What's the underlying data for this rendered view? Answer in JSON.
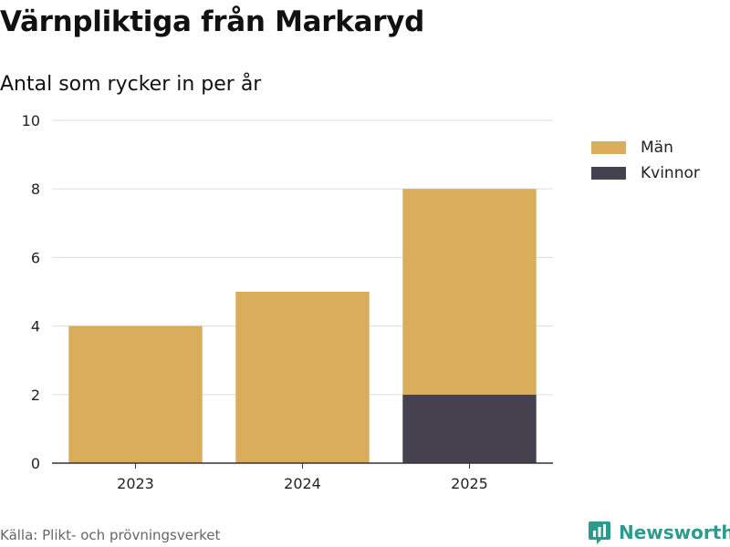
{
  "header": {
    "title": "Värnpliktiga från Markaryd",
    "subtitle": "Antal som rycker in per år"
  },
  "chart_data": {
    "type": "bar",
    "stacked": true,
    "categories": [
      "2023",
      "2024",
      "2025"
    ],
    "series": [
      {
        "name": "Kvinnor",
        "values": [
          0,
          0,
          2
        ],
        "color": "#45414f"
      },
      {
        "name": "Män",
        "values": [
          4,
          5,
          6
        ],
        "color": "#d9ad5b"
      }
    ],
    "ylim": [
      0,
      10
    ],
    "yticks": [
      0,
      2,
      4,
      6,
      8,
      10
    ],
    "grid": true,
    "legend_position": "top-right"
  },
  "legend": {
    "items": [
      {
        "label": "Män",
        "color": "#d9ad5b"
      },
      {
        "label": "Kvinnor",
        "color": "#45414f"
      }
    ]
  },
  "footer": {
    "source": "Källa: Plikt- och prövningsverket",
    "brand": "Newsworthy",
    "brand_color": "#2e9a8e"
  }
}
